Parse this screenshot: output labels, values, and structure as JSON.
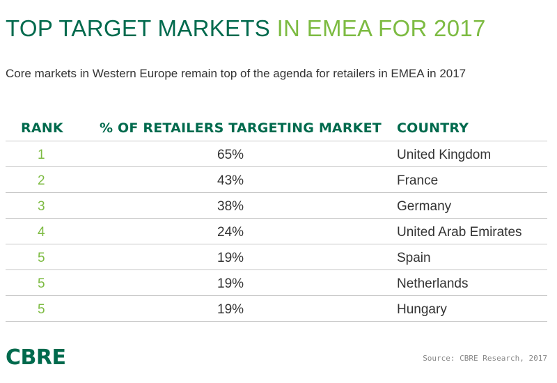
{
  "title": {
    "main": "TOP TARGET MARKETS",
    "accent": "IN EMEA FOR 2017"
  },
  "subtitle": "Core markets in Western Europe remain top of the agenda for retailers in EMEA in 2017",
  "colors": {
    "dark_green": "#006a4d",
    "light_green": "#7dbb42",
    "text": "#333333",
    "rule": "#c8c8c8"
  },
  "table": {
    "headers": {
      "rank": "RANK",
      "percent": "% OF RETAILERS TARGETING MARKET",
      "country": "COUNTRY"
    }
  },
  "chart_data": {
    "type": "table",
    "columns": [
      "RANK",
      "% OF RETAILERS TARGETING MARKET",
      "COUNTRY"
    ],
    "rows": [
      {
        "rank": "1",
        "percent": "65%",
        "country": "United Kingdom"
      },
      {
        "rank": "2",
        "percent": "43%",
        "country": "France"
      },
      {
        "rank": "3",
        "percent": "38%",
        "country": "Germany"
      },
      {
        "rank": "4",
        "percent": "24%",
        "country": "United Arab Emirates"
      },
      {
        "rank": "5",
        "percent": "19%",
        "country": "Spain"
      },
      {
        "rank": "5",
        "percent": "19%",
        "country": "Netherlands"
      },
      {
        "rank": "5",
        "percent": "19%",
        "country": "Hungary"
      }
    ]
  },
  "logo": "CBRE",
  "source": "Source: CBRE Research, 2017"
}
